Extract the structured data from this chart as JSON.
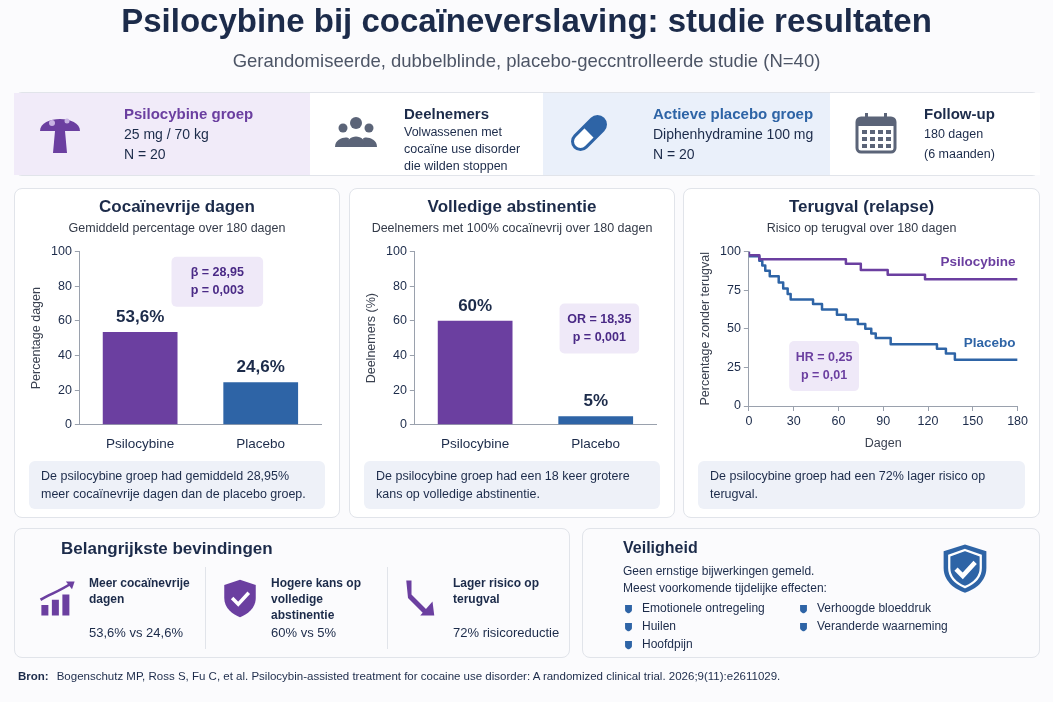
{
  "chart_data": [
    {
      "type": "other",
      "title": "Psilocybine bij cocaïneverslaving: studie resultaten",
      "subtitle": "Gerandomiseerde, dubbelblinde, placebo-geccntrolleerde studie (N=40)",
      "annotations": [
        "Psilocybine groep\n25 mg / 70 kg\nN = 20",
        "Deelnemers\nVolwassenen met\ncocaïne use disorder\ndie wilden stoppen",
        "Actieve placebo groep\nDiphenhydramine 100 mg\nN = 20",
        "Follow-up\n180 dagen\n(6 maanden)"
      ]
    },
    {
      "type": "bar",
      "title": "Cocaïnevrije dagen",
      "subtitle": "Gemiddeld percentage over 180 dagen",
      "ylabel": "Percentage dagen",
      "categories": [
        "Psilocybine",
        "Placebo"
      ],
      "values": [
        53.6,
        24.6
      ],
      "colors": [
        "#6b3fa0",
        "#2e64a6"
      ],
      "value_labels": [
        "53,6%",
        "24,6%"
      ],
      "ylim": [
        0,
        100
      ],
      "yticks": [
        0,
        20,
        40,
        60,
        80,
        100
      ],
      "grid": false,
      "legend": false,
      "annotations": [
        "β = 28,95\np = 0,003",
        "De psilocybine groep had gemiddeld 28,95% meer cocaïnevrije dagen dan de placebo groep."
      ]
    },
    {
      "type": "bar",
      "title": "Volledige abstinentie",
      "subtitle": "Deelnemers met 100% cocaïnevrij over 180 dagen",
      "ylabel": "Deelnemers (%)",
      "categories": [
        "Psilocybine",
        "Placebo"
      ],
      "values": [
        60,
        5
      ],
      "colors": [
        "#6b3fa0",
        "#2e64a6"
      ],
      "value_labels": [
        "60%",
        "5%"
      ],
      "ylim": [
        0,
        100
      ],
      "yticks": [
        0,
        20,
        40,
        60,
        80,
        100
      ],
      "grid": false,
      "legend": false,
      "annotations": [
        "OR = 18,35\np = 0,001",
        "De psilocybine groep had een 18 keer grotere kans op volledige abstinentie."
      ]
    },
    {
      "type": "step",
      "title": "Terugval (relapse)",
      "subtitle": "Risico op terugval over 180 dagen",
      "xlabel": "Dagen",
      "ylabel": "Percentage zonder terugval",
      "xlim": [
        0,
        180
      ],
      "xticks": [
        0,
        30,
        60,
        90,
        120,
        150,
        180
      ],
      "ylim": [
        0,
        100
      ],
      "yticks": [
        0,
        25,
        50,
        75,
        100
      ],
      "grid": false,
      "legend": false,
      "marker": "none",
      "series": [
        {
          "name": "Psilocybine",
          "color": "#6b3fa0",
          "x": [
            0,
            7,
            65,
            75,
            93,
            118,
            134,
            180
          ],
          "values": [
            100,
            97.5,
            95,
            92,
            88,
            85,
            82,
            82
          ]
        },
        {
          "name": "Placebo",
          "color": "#2e64a6",
          "x": [
            0,
            7,
            9,
            11,
            14,
            20,
            23,
            26,
            28,
            43,
            49,
            59,
            65,
            73,
            78,
            82,
            85,
            95,
            126,
            132,
            138,
            148,
            180
          ],
          "values": [
            100,
            97,
            94,
            91,
            87.5,
            84,
            80,
            76,
            72.5,
            69,
            66,
            62.5,
            59,
            56,
            53,
            50,
            47,
            44,
            40,
            37,
            34,
            30,
            30
          ]
        }
      ],
      "annotations": [
        "HR = 0,25\np = 0,01",
        "De psilocybine groep had een 72% lager risico op terugval."
      ]
    },
    {
      "type": "other",
      "title": "Belangrijkste bevindingen",
      "annotations": [
        "Meer cocaïnevrije dagen\n53,6% vs 24,6%",
        "Hogere kans op volledige abstinentie\n60% vs 5%",
        "Lager risico op terugval\n72% risicoreductie"
      ]
    },
    {
      "type": "other",
      "title": "Veiligheid",
      "annotations": [
        "Geen ernstige bijwerkingen gemeld.\nMeest voorkomende tijdelijke effecten:",
        "Emotionele ontregeling",
        "Verhoogde bloeddruk",
        "Huilen",
        "Veranderde waarneming",
        "Hoofdpijn"
      ]
    },
    {
      "type": "other",
      "annotations": [
        "Bron:\nBogenschutz MP, Ross S, Fu C, et al. Psilocybin-assisted treatment for cocaine use disorder: A randomized clinical trial. 2026;9(11):e2611029."
      ]
    }
  ]
}
